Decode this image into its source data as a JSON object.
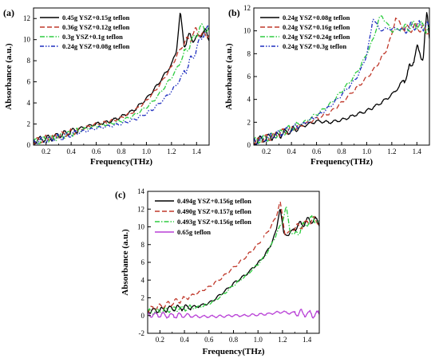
{
  "chart_data": [
    {
      "panel": "(a)",
      "type": "line",
      "xlabel": "Frequency(THz)",
      "ylabel": "Absorbance (a.u.)",
      "xlim": [
        0.1,
        1.5
      ],
      "ylim": [
        0,
        13
      ],
      "xticks": [
        "0.2",
        "0.4",
        "0.6",
        "0.8",
        "1.0",
        "1.2",
        "1.4"
      ],
      "yticks": [
        "0",
        "2",
        "4",
        "6",
        "8",
        "10",
        "12"
      ],
      "legend_position": "top-left",
      "series": [
        {
          "name": "0.45g YSZ+0.15g teflon",
          "color": "#000000",
          "dash": "solid",
          "x": [
            0.1,
            0.2,
            0.3,
            0.4,
            0.5,
            0.6,
            0.7,
            0.8,
            0.9,
            1.0,
            1.05,
            1.1,
            1.15,
            1.2,
            1.24,
            1.27,
            1.3,
            1.35,
            1.4,
            1.45,
            1.5
          ],
          "y": [
            0.4,
            0.6,
            0.9,
            1.3,
            1.7,
            2.0,
            2.2,
            2.7,
            3.3,
            4.4,
            5.1,
            5.9,
            6.8,
            7.6,
            9.0,
            12.6,
            9.6,
            10.3,
            10.0,
            10.8,
            10.2
          ]
        },
        {
          "name": "0.36g YSZ+0.12g teflon",
          "color": "#c0392b",
          "dash": "dashed",
          "x": [
            0.1,
            0.2,
            0.3,
            0.4,
            0.5,
            0.6,
            0.7,
            0.8,
            0.9,
            1.0,
            1.05,
            1.1,
            1.15,
            1.2,
            1.25,
            1.3,
            1.35,
            1.4,
            1.45,
            1.5
          ],
          "y": [
            0.3,
            0.6,
            0.9,
            1.2,
            1.6,
            2.0,
            2.2,
            2.6,
            3.2,
            4.2,
            4.9,
            5.6,
            6.5,
            7.4,
            8.7,
            9.6,
            10.2,
            10.8,
            10.4,
            10.6
          ]
        },
        {
          "name": "0.3g YSZ+0.1g teflon",
          "color": "#2ecc40",
          "dash": "dashdot",
          "x": [
            0.1,
            0.2,
            0.3,
            0.4,
            0.5,
            0.6,
            0.7,
            0.8,
            0.9,
            1.0,
            1.05,
            1.1,
            1.15,
            1.2,
            1.25,
            1.3,
            1.35,
            1.4,
            1.45,
            1.5
          ],
          "y": [
            0.3,
            0.5,
            0.8,
            1.1,
            1.5,
            1.8,
            2.0,
            2.3,
            2.8,
            3.6,
            4.1,
            4.8,
            5.6,
            6.4,
            7.4,
            8.6,
            9.6,
            10.6,
            11.3,
            10.8
          ]
        },
        {
          "name": "0.24g YSZ+0.08g teflon",
          "color": "#1f2fbf",
          "dash": "dashdotdot",
          "x": [
            0.1,
            0.2,
            0.3,
            0.4,
            0.5,
            0.6,
            0.7,
            0.8,
            0.9,
            1.0,
            1.05,
            1.1,
            1.15,
            1.2,
            1.25,
            1.3,
            1.35,
            1.4,
            1.45,
            1.5
          ],
          "y": [
            0.3,
            0.5,
            0.7,
            1.0,
            1.3,
            1.6,
            1.8,
            2.0,
            2.4,
            3.0,
            3.4,
            3.9,
            4.5,
            5.1,
            5.9,
            6.9,
            7.9,
            9.2,
            10.6,
            11.0
          ]
        }
      ]
    },
    {
      "panel": "(b)",
      "type": "line",
      "xlabel": "Frequency(THz)",
      "ylabel": "Absorbance (a.u.)",
      "xlim": [
        0.1,
        1.5
      ],
      "ylim": [
        0,
        12
      ],
      "xticks": [
        "0.2",
        "0.4",
        "0.6",
        "0.8",
        "1.0",
        "1.2",
        "1.4"
      ],
      "yticks": [
        "0",
        "2",
        "4",
        "6",
        "8",
        "10",
        "12"
      ],
      "legend_position": "top-left",
      "series": [
        {
          "name": "0.24g YSZ+0.08g teflon",
          "color": "#000000",
          "dash": "solid",
          "x": [
            0.1,
            0.2,
            0.3,
            0.4,
            0.5,
            0.6,
            0.7,
            0.8,
            0.9,
            1.0,
            1.1,
            1.2,
            1.25,
            1.3,
            1.35,
            1.4,
            1.45,
            1.48,
            1.5
          ],
          "y": [
            0.3,
            0.6,
            0.9,
            1.3,
            1.7,
            2.1,
            2.0,
            2.2,
            2.6,
            3.0,
            3.6,
            4.4,
            5.0,
            5.8,
            6.8,
            8.4,
            7.6,
            11.5,
            9.6
          ]
        },
        {
          "name": "0.24g YSZ+0.16g teflon",
          "color": "#c0392b",
          "dash": "dashed",
          "x": [
            0.1,
            0.2,
            0.3,
            0.4,
            0.5,
            0.6,
            0.7,
            0.8,
            0.9,
            1.0,
            1.05,
            1.1,
            1.15,
            1.2,
            1.23,
            1.3,
            1.4,
            1.5
          ],
          "y": [
            0.3,
            0.6,
            1.0,
            1.4,
            1.8,
            2.3,
            2.8,
            3.7,
            4.8,
            5.9,
            6.5,
            7.3,
            8.2,
            9.6,
            11.2,
            10.1,
            10.3,
            10.0
          ]
        },
        {
          "name": "0.24g YSZ+0.24g teflon",
          "color": "#2ecc40",
          "dash": "dashdot",
          "x": [
            0.1,
            0.2,
            0.3,
            0.4,
            0.5,
            0.6,
            0.7,
            0.8,
            0.9,
            0.95,
            1.0,
            1.05,
            1.1,
            1.12,
            1.2,
            1.3,
            1.4,
            1.5
          ],
          "y": [
            0.3,
            0.6,
            1.0,
            1.5,
            2.0,
            2.7,
            3.5,
            4.7,
            6.0,
            6.9,
            8.0,
            9.2,
            11.1,
            11.3,
            10.0,
            10.2,
            10.6,
            10.1
          ]
        },
        {
          "name": "0.24g YSZ+0.3g teflon",
          "color": "#1f2fbf",
          "dash": "dashdotdot",
          "x": [
            0.1,
            0.2,
            0.3,
            0.4,
            0.5,
            0.6,
            0.7,
            0.8,
            0.9,
            0.95,
            1.0,
            1.03,
            1.05,
            1.1,
            1.2,
            1.3,
            1.4,
            1.5
          ],
          "y": [
            0.3,
            0.6,
            1.0,
            1.4,
            1.9,
            2.5,
            3.3,
            4.4,
            5.6,
            6.5,
            7.9,
            9.6,
            11.2,
            10.1,
            10.2,
            10.1,
            10.5,
            10.3
          ]
        }
      ]
    },
    {
      "panel": "(c)",
      "type": "line",
      "xlabel": "Frequency(THz)",
      "ylabel": "Absorbance (a.u.)",
      "xlim": [
        0.1,
        1.5
      ],
      "ylim": [
        -2,
        14
      ],
      "xticks": [
        "0.2",
        "0.4",
        "0.6",
        "0.8",
        "1.0",
        "1.2",
        "1.4"
      ],
      "yticks": [
        "-2",
        "0",
        "2",
        "4",
        "6",
        "8",
        "10",
        "12",
        "14"
      ],
      "legend_position": "top-left",
      "series": [
        {
          "name": "0.494g YSZ+0.156g teflon",
          "color": "#000000",
          "dash": "solid",
          "x": [
            0.1,
            0.2,
            0.3,
            0.4,
            0.5,
            0.6,
            0.7,
            0.8,
            0.9,
            1.0,
            1.05,
            1.1,
            1.15,
            1.18,
            1.21,
            1.25,
            1.3,
            1.35,
            1.4,
            1.45,
            1.5
          ],
          "y": [
            0.5,
            0.6,
            0.8,
            0.9,
            1.0,
            1.4,
            2.4,
            3.6,
            4.6,
            5.9,
            6.7,
            7.8,
            9.6,
            12.3,
            9.2,
            9.1,
            9.9,
            10.3,
            10.6,
            10.8,
            10.5
          ]
        },
        {
          "name": "0.490g YSZ+0.157g teflon",
          "color": "#c0392b",
          "dash": "dashed",
          "x": [
            0.1,
            0.2,
            0.3,
            0.4,
            0.5,
            0.6,
            0.7,
            0.8,
            0.9,
            1.0,
            1.05,
            1.1,
            1.15,
            1.18,
            1.22,
            1.26,
            1.3,
            1.35,
            1.4,
            1.45,
            1.5
          ],
          "y": [
            0.6,
            1.0,
            1.4,
            1.9,
            2.5,
            3.2,
            4.2,
            5.4,
            6.6,
            8.0,
            8.9,
            9.9,
            11.2,
            12.9,
            9.2,
            9.4,
            9.8,
            10.1,
            10.5,
            10.8,
            10.6
          ]
        },
        {
          "name": "0.493g YSZ+0.156g teflon",
          "color": "#2ecc40",
          "dash": "dashdot",
          "x": [
            0.1,
            0.2,
            0.3,
            0.4,
            0.5,
            0.6,
            0.7,
            0.8,
            0.9,
            1.0,
            1.05,
            1.1,
            1.15,
            1.2,
            1.23,
            1.26,
            1.3,
            1.35,
            1.4,
            1.45,
            1.5
          ],
          "y": [
            0.4,
            0.5,
            0.7,
            0.8,
            0.9,
            1.3,
            2.2,
            3.4,
            4.5,
            5.8,
            6.6,
            7.7,
            9.2,
            10.6,
            12.3,
            9.6,
            9.0,
            9.8,
            10.4,
            11.0,
            10.4
          ]
        },
        {
          "name": "0.65g teflon",
          "color": "#b83fd6",
          "dash": "solid",
          "x": [
            0.1,
            0.2,
            0.3,
            0.4,
            0.5,
            0.6,
            0.7,
            0.8,
            0.9,
            1.0,
            1.1,
            1.15,
            1.2,
            1.25,
            1.3,
            1.4,
            1.5
          ],
          "y": [
            0.1,
            0.1,
            0.0,
            0.0,
            -0.1,
            -0.1,
            -0.1,
            0.0,
            0.0,
            0.1,
            0.2,
            0.35,
            0.4,
            0.3,
            0.3,
            0.2,
            0.1
          ]
        }
      ]
    }
  ]
}
